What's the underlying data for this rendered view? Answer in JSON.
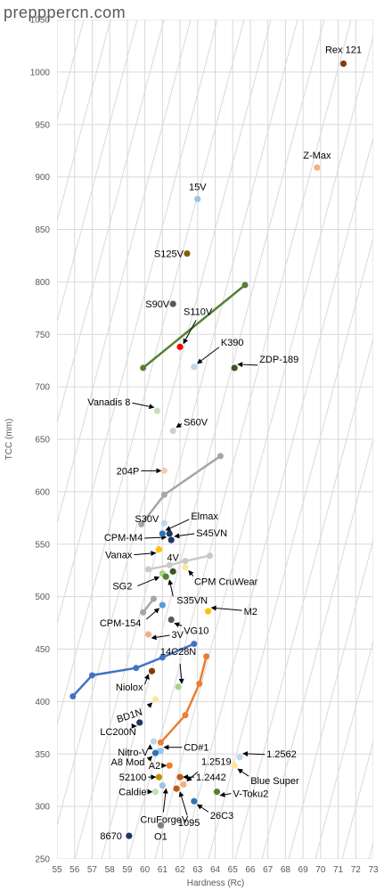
{
  "watermark": "prepppercn.com",
  "chart_data": {
    "type": "scatter",
    "xlabel": "Hardness (Rc)",
    "ylabel": "TCC (mm)",
    "xlim": [
      55,
      73
    ],
    "ylim": [
      250,
      1050
    ],
    "xticks": [
      "55",
      "56",
      "57",
      "58",
      "59",
      "60",
      "61",
      "62",
      "63",
      "64",
      "65",
      "66",
      "67",
      "68",
      "69",
      "70",
      "71",
      "72",
      "73"
    ],
    "yticks": [
      "250",
      "300",
      "350",
      "400",
      "450",
      "500",
      "550",
      "600",
      "650",
      "700",
      "750",
      "800",
      "850",
      "900",
      "950",
      "1000",
      "1050"
    ],
    "grid": "diagonal",
    "points": [
      {
        "name": "Rex 121",
        "x": 71.3,
        "y": 1008,
        "color": "#843c0c"
      },
      {
        "name": "Z-Max",
        "x": 69.8,
        "y": 909,
        "color": "#f4b183"
      },
      {
        "name": "15V",
        "x": 63.0,
        "y": 879,
        "color": "#9dc3e6"
      },
      {
        "name": "S125V",
        "x": 62.4,
        "y": 827,
        "color": "#806000"
      },
      {
        "name": "S90V",
        "x": 61.6,
        "y": 779,
        "color": "#595959"
      },
      {
        "name": "S110V",
        "x": 62.0,
        "y": 738,
        "color": "#ff0000"
      },
      {
        "name": "K390",
        "x": 62.8,
        "y": 719,
        "color": "#bdd7ee"
      },
      {
        "name": "ZDP-189",
        "x": 65.1,
        "y": 718,
        "color": "#385723"
      },
      {
        "name": "Vanadis 8",
        "x": 60.7,
        "y": 677,
        "color": "#c5e0b4"
      },
      {
        "name": "S60V",
        "x": 61.6,
        "y": 658,
        "color": "#d0cece"
      },
      {
        "name": "204P",
        "x": 61.1,
        "y": 620,
        "color": "#f8cbad"
      },
      {
        "name": "S30V",
        "x": 61.1,
        "y": 570,
        "color": "#bdd7ee"
      },
      {
        "name": "CPM-M4",
        "x": 61.4,
        "y": 560,
        "color": "#203864"
      },
      {
        "name": "Elmax",
        "x": 61.0,
        "y": 560,
        "color": "#2e75b6"
      },
      {
        "name": "S45VN",
        "x": 61.5,
        "y": 554,
        "color": "#1f3864"
      },
      {
        "name": "Vanax",
        "x": 60.8,
        "y": 545,
        "color": "#ffc000"
      },
      {
        "name": "CPM CruWear",
        "x": 62.3,
        "y": 528,
        "color": "#ffe699"
      },
      {
        "name": "4V",
        "x": 61.6,
        "y": 524,
        "color": "#375623"
      },
      {
        "name": "SG2",
        "x": 61.0,
        "y": 522,
        "color": "#a9d18e"
      },
      {
        "name": "S35VN",
        "x": 61.2,
        "y": 519,
        "color": "#548235"
      },
      {
        "name": "CPM-154",
        "x": 61.0,
        "y": 492,
        "color": "#5b9bd5"
      },
      {
        "name": "M2",
        "x": 63.6,
        "y": 486,
        "color": "#ffc000"
      },
      {
        "name": "VG10",
        "x": 61.5,
        "y": 478,
        "color": "#595959"
      },
      {
        "name": "3V",
        "x": 60.2,
        "y": 464,
        "color": "#f4b183"
      },
      {
        "name": "14C28N",
        "x": 61.9,
        "y": 414,
        "color": "#a9d18e"
      },
      {
        "name": "Niolox",
        "x": 60.4,
        "y": 429,
        "color": "#843c0c"
      },
      {
        "name": "BD1N",
        "x": 60.6,
        "y": 402,
        "color": "#ffe699"
      },
      {
        "name": "LC200N",
        "x": 59.7,
        "y": 380,
        "color": "#1f3864"
      },
      {
        "name": "Nitro-V",
        "x": 60.5,
        "y": 362,
        "color": "#bdd7ee"
      },
      {
        "name": "CD#1",
        "x": 60.9,
        "y": 353,
        "color": "#9dc3e6"
      },
      {
        "name": "A8 Mod",
        "x": 60.6,
        "y": 351,
        "color": "#2e75b6"
      },
      {
        "name": "1.2562",
        "x": 65.4,
        "y": 347,
        "color": "#bdd7ee"
      },
      {
        "name": "A2",
        "x": 61.4,
        "y": 339,
        "color": "#ed7d31"
      },
      {
        "name": "Blue Super",
        "x": 65.1,
        "y": 339,
        "color": "#ffe699"
      },
      {
        "name": "52100",
        "x": 60.8,
        "y": 328,
        "color": "#bf9000"
      },
      {
        "name": "1.2442",
        "x": 62.0,
        "y": 328,
        "color": "#c55a11"
      },
      {
        "name": "1.2519",
        "x": 62.2,
        "y": 321,
        "color": "#f4b183"
      },
      {
        "name": "CruForgeV",
        "x": 61.0,
        "y": 320,
        "color": "#9dc3e6"
      },
      {
        "name": "Caldie",
        "x": 60.6,
        "y": 314,
        "color": "#c5e0b4"
      },
      {
        "name": "1095",
        "x": 61.8,
        "y": 317,
        "color": "#c55a11"
      },
      {
        "name": "V-Toku2",
        "x": 64.1,
        "y": 314,
        "color": "#548235"
      },
      {
        "name": "26C3",
        "x": 62.8,
        "y": 305,
        "color": "#2e75b6"
      },
      {
        "name": "O1",
        "x": 60.9,
        "y": 282,
        "color": "#7f7f7f"
      },
      {
        "name": "8670",
        "x": 59.1,
        "y": 272,
        "color": "#203864"
      }
    ],
    "series": [
      {
        "color": "#548235",
        "points": [
          [
            59.9,
            718
          ],
          [
            65.7,
            797
          ]
        ]
      },
      {
        "color": "#a6a6a6",
        "points": [
          [
            59.8,
            569
          ],
          [
            61.1,
            597
          ],
          [
            64.3,
            634
          ]
        ]
      },
      {
        "color": "#c9c9c9",
        "points": [
          [
            60.2,
            526
          ],
          [
            61.4,
            530
          ],
          [
            62.3,
            534
          ],
          [
            63.7,
            539
          ]
        ]
      },
      {
        "color": "#a6a6a6",
        "points": [
          [
            59.9,
            485
          ],
          [
            60.5,
            498
          ]
        ]
      },
      {
        "color": "#4472c4",
        "points": [
          [
            55.9,
            405
          ],
          [
            57.0,
            425
          ],
          [
            59.5,
            432
          ],
          [
            61.0,
            442
          ],
          [
            62.8,
            455
          ]
        ]
      },
      {
        "color": "#ed7d31",
        "points": [
          [
            60.9,
            361
          ],
          [
            62.3,
            387
          ],
          [
            63.1,
            417
          ],
          [
            63.5,
            443
          ]
        ]
      }
    ]
  }
}
